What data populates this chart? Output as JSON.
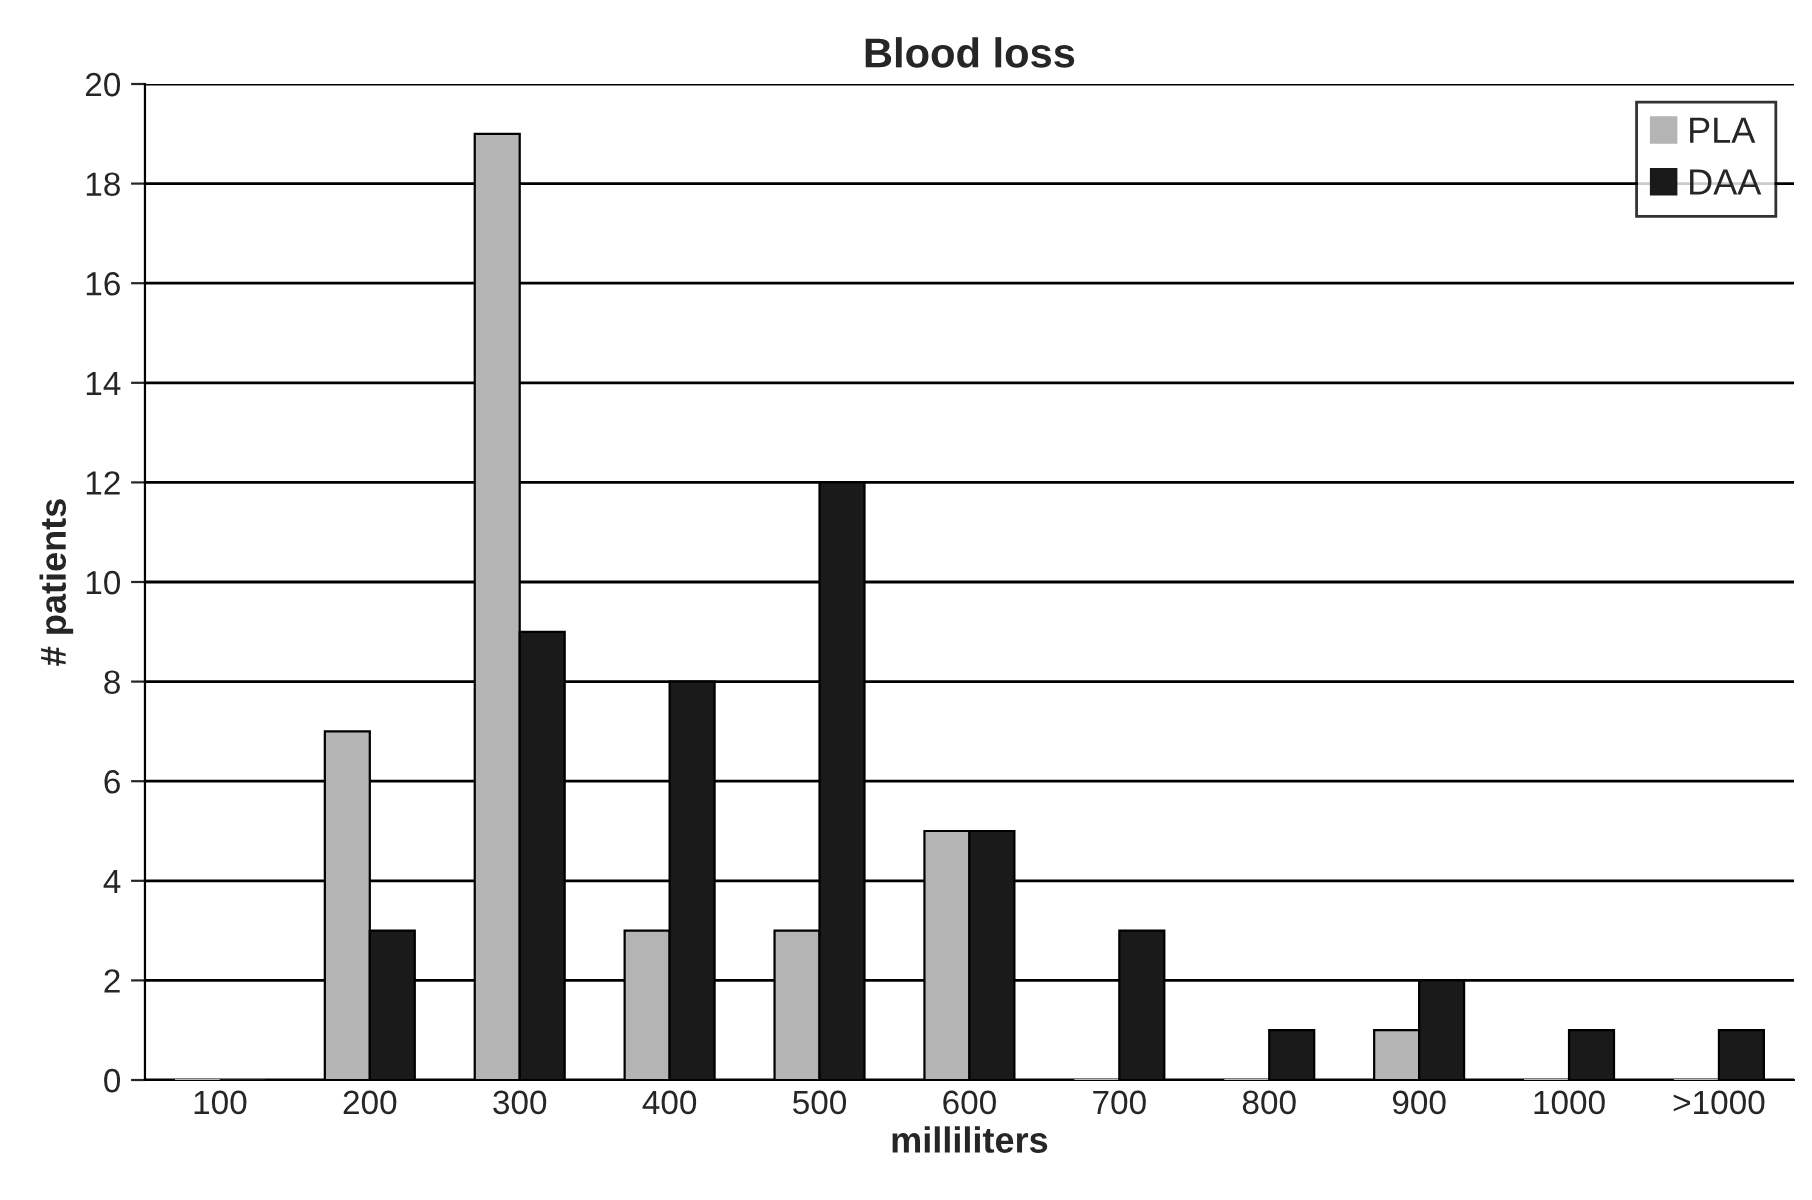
{
  "chart_data": {
    "type": "bar",
    "title": "Blood loss",
    "xlabel": "milliliters",
    "ylabel": "# patients",
    "categories": [
      "100",
      "200",
      "300",
      "400",
      "500",
      "600",
      "700",
      "800",
      "900",
      "1000",
      ">1000"
    ],
    "series": [
      {
        "name": "PLA",
        "color": "#b4b4b4",
        "values": [
          0,
          7,
          19,
          3,
          3,
          5,
          0,
          0,
          1,
          0,
          0
        ]
      },
      {
        "name": "DAA",
        "color": "#1a1a1a",
        "values": [
          0,
          3,
          9,
          8,
          12,
          5,
          3,
          1,
          2,
          1,
          1
        ]
      }
    ],
    "ylim": [
      0,
      20
    ],
    "yticks": [
      0,
      2,
      4,
      6,
      8,
      10,
      12,
      14,
      16,
      18,
      20
    ],
    "grid": "y",
    "legend": "top right"
  }
}
